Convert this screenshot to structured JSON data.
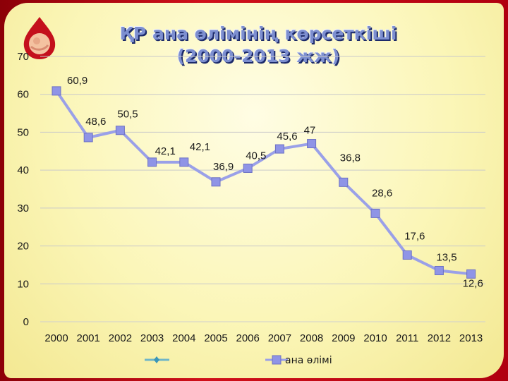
{
  "title": {
    "line1": "ҚР ана өлімінің көрсеткіші",
    "line2": "(2000-2013 жж)"
  },
  "colors": {
    "frame": "#b8000c",
    "line": "#9aa0e8",
    "marker": "#8f94e6",
    "title": "#7d8fd0"
  },
  "chart_data": {
    "type": "line",
    "categories": [
      "2000",
      "2001",
      "2002",
      "2003",
      "2004",
      "2005",
      "2006",
      "2007",
      "2008",
      "2009",
      "2010",
      "2011",
      "2012",
      "2013"
    ],
    "series": [
      {
        "name": "ана өлімі",
        "values": [
          60.9,
          48.6,
          50.5,
          42.1,
          42.1,
          36.9,
          40.5,
          45.6,
          47,
          36.8,
          28.6,
          17.6,
          13.5,
          12.6
        ],
        "labels": [
          "60,9",
          "48,6",
          "50,5",
          "42,1",
          "42,1",
          "36,9",
          "40,5",
          "45,6",
          "47",
          "36,8",
          "28,6",
          "17,6",
          "13,5",
          "12,6"
        ]
      }
    ],
    "yticks": [
      "0",
      "10",
      "20",
      "30",
      "40",
      "50",
      "60",
      "70"
    ],
    "ylim": [
      0,
      70
    ],
    "grid": true,
    "legend": "bottom"
  }
}
